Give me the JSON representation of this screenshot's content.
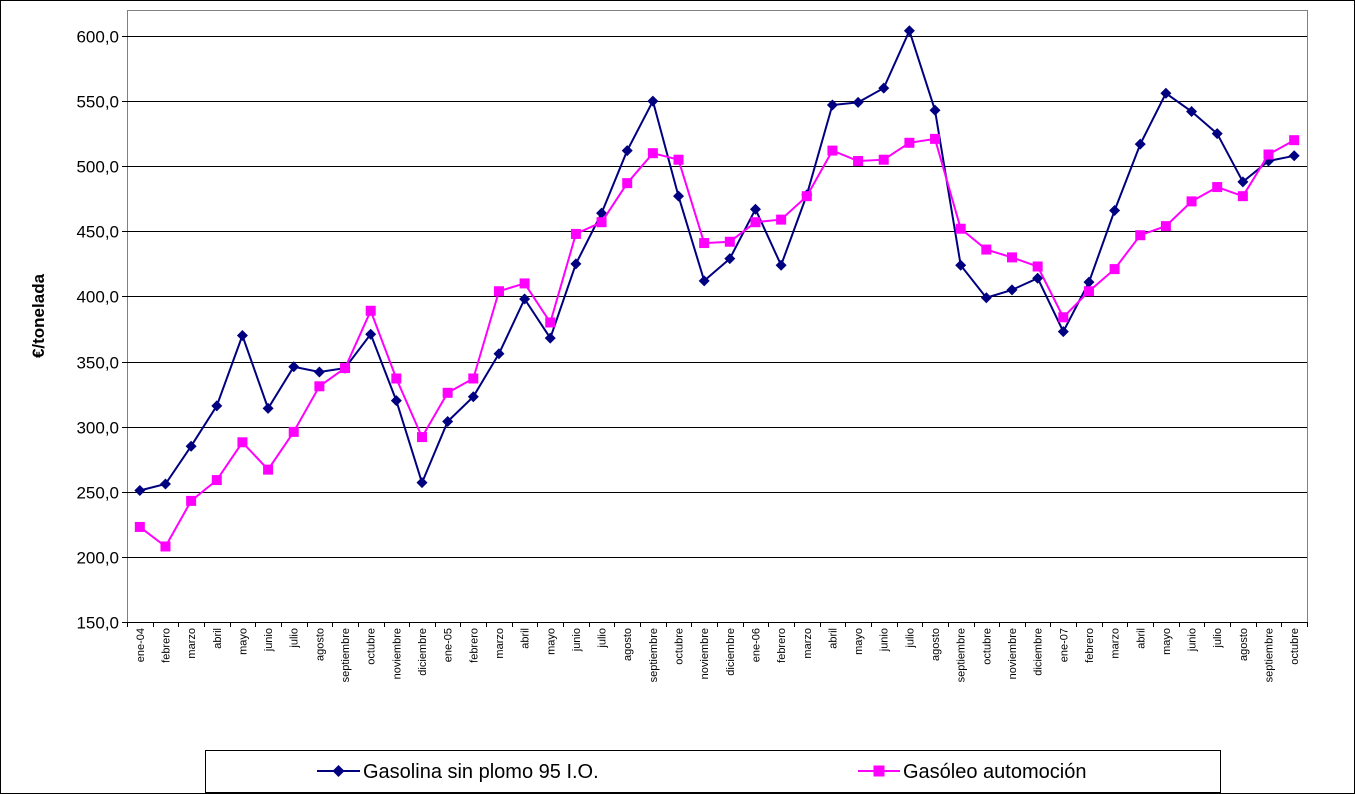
{
  "chart_data": {
    "type": "line",
    "ylabel": "€/tonelada",
    "xlabel": "",
    "ylim": [
      150,
      600
    ],
    "y_ticks": [
      "150,0",
      "200,0",
      "250,0",
      "300,0",
      "350,0",
      "400,0",
      "450,0",
      "500,0",
      "550,0",
      "600,0"
    ],
    "grid": true,
    "legend_position": "bottom",
    "categories": [
      "ene-04",
      "febrero",
      "marzo",
      "abril",
      "mayo",
      "junio",
      "julio",
      "agosto",
      "septiembre",
      "octubre",
      "noviembre",
      "diciembre",
      "ene-05",
      "febrero",
      "marzo",
      "abril",
      "mayo",
      "junio",
      "julio",
      "agosto",
      "septiembre",
      "octubre",
      "noviembre",
      "diciembre",
      "ene-06",
      "febrero",
      "marzo",
      "abril",
      "mayo",
      "junio",
      "julio",
      "agosto",
      "septiembre",
      "octubre",
      "noviembre",
      "diciembre",
      "ene-07",
      "febrero",
      "marzo",
      "abril",
      "mayo",
      "junio",
      "julio",
      "agosto",
      "septiembre",
      "octubre"
    ],
    "series": [
      {
        "name": "Gasolina sin plomo 95 I.O.",
        "color": "#000080",
        "marker": "diamond",
        "values": [
          251,
          256,
          285,
          316,
          370,
          314,
          346,
          342,
          345,
          371,
          320,
          257,
          304,
          323,
          356,
          398,
          368,
          425,
          464,
          512,
          550,
          477,
          412,
          429,
          467,
          424,
          478,
          547,
          549,
          560,
          604,
          543,
          424,
          399,
          405,
          414,
          373,
          411,
          466,
          517,
          556,
          542,
          525,
          488,
          504,
          508
        ]
      },
      {
        "name": "Gasóleo automoción",
        "color": "#ff00ff",
        "marker": "square",
        "values": [
          223,
          208,
          243,
          259,
          288,
          267,
          296,
          331,
          345,
          389,
          337,
          292,
          326,
          337,
          404,
          410,
          380,
          448,
          457,
          487,
          510,
          505,
          441,
          442,
          457,
          459,
          477,
          512,
          504,
          505,
          518,
          521,
          452,
          436,
          430,
          423,
          384,
          404,
          421,
          447,
          454,
          473,
          484,
          477,
          509,
          520
        ]
      }
    ]
  }
}
